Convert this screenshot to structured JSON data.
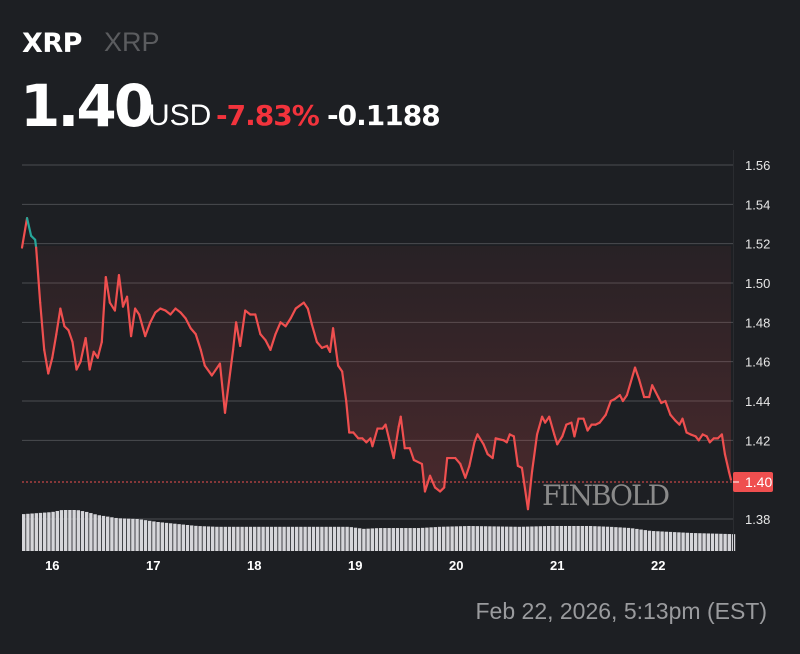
{
  "header": {
    "symbol": "XRP",
    "name": "XRP",
    "price": "1.40",
    "currency": "USD",
    "change_pct": "-7.83%",
    "change_abs": "-0.1188"
  },
  "colors": {
    "down": "#f2333c",
    "line_down": "#ef4f4f",
    "line_up": "#26a69a",
    "background": "#1d1f23"
  },
  "footer": {
    "timestamp": "Feb 22, 2026, 5:13pm (EST)"
  },
  "watermark": "FINBOLD",
  "chart_data": {
    "type": "line",
    "ylim": [
      1.37,
      1.57
    ],
    "y_ticks": [
      "1.56",
      "1.54",
      "1.52",
      "1.50",
      "1.48",
      "1.46",
      "1.44",
      "1.42",
      "1.40",
      "1.38"
    ],
    "x_ticks": [
      "16",
      "17",
      "18",
      "19",
      "20",
      "21",
      "22"
    ],
    "xlim": [
      15.7,
      22.74
    ],
    "current_price_label": "1.40",
    "current_price": 1.4,
    "previous_close": 1.5188,
    "grid": true,
    "series": [
      {
        "x": [
          15.7,
          15.75,
          15.79,
          15.83,
          15.84,
          15.88,
          15.92,
          15.96,
          16.0,
          16.04,
          16.08,
          16.12,
          16.16,
          16.2,
          16.24,
          16.28,
          16.33,
          16.37,
          16.41,
          16.45,
          16.49,
          16.53,
          16.57,
          16.62,
          16.66,
          16.7,
          16.74,
          16.78,
          16.82,
          16.86,
          16.92,
          16.97,
          17.02,
          17.07,
          17.12,
          17.17,
          17.22,
          17.27,
          17.32,
          17.37,
          17.42,
          17.47,
          17.51,
          17.58,
          17.66,
          17.71,
          17.79,
          17.82,
          17.86,
          17.91,
          17.96,
          18.01,
          18.06,
          18.11,
          18.16,
          18.21,
          18.26,
          18.31,
          18.36,
          18.41,
          18.49,
          18.53,
          18.57,
          18.62,
          18.67,
          18.72,
          18.75,
          18.78,
          18.83,
          18.87,
          18.91,
          18.94,
          18.98,
          19.03,
          19.07,
          19.11,
          19.15,
          19.17,
          19.22,
          19.27,
          19.3,
          19.38,
          19.43,
          19.45,
          19.49,
          19.54,
          19.58,
          19.66,
          19.69,
          19.74,
          19.79,
          19.84,
          19.88,
          19.91,
          19.99,
          20.04,
          20.09,
          20.13,
          20.18,
          20.21,
          20.27,
          20.31,
          20.36,
          20.39,
          20.47,
          20.5,
          20.53,
          20.57,
          20.61,
          20.65,
          20.71,
          20.75,
          20.8,
          20.85,
          20.88,
          20.92,
          20.97,
          21.0,
          21.05,
          21.09,
          21.14,
          21.17,
          21.21,
          21.26,
          21.3,
          21.34,
          21.38,
          21.42,
          21.48,
          21.53,
          21.57,
          21.62,
          21.65,
          21.69,
          21.77,
          21.81,
          21.86,
          21.91,
          21.94,
          22.0,
          22.03,
          22.07,
          22.12,
          22.17,
          22.21,
          22.24,
          22.28,
          22.32,
          22.37,
          22.4,
          22.44,
          22.48,
          22.51,
          22.55,
          22.59,
          22.63,
          22.66,
          22.7,
          22.72
        ],
        "y": [
          1.518,
          1.533,
          1.524,
          1.522,
          1.518,
          1.49,
          1.466,
          1.454,
          1.462,
          1.474,
          1.487,
          1.478,
          1.476,
          1.47,
          1.456,
          1.46,
          1.472,
          1.456,
          1.465,
          1.462,
          1.47,
          1.503,
          1.49,
          1.486,
          1.504,
          1.488,
          1.493,
          1.473,
          1.487,
          1.484,
          1.473,
          1.48,
          1.485,
          1.487,
          1.486,
          1.484,
          1.487,
          1.485,
          1.482,
          1.477,
          1.474,
          1.466,
          1.458,
          1.453,
          1.459,
          1.434,
          1.466,
          1.48,
          1.468,
          1.486,
          1.484,
          1.484,
          1.474,
          1.471,
          1.466,
          1.474,
          1.48,
          1.478,
          1.482,
          1.487,
          1.49,
          1.487,
          1.479,
          1.47,
          1.467,
          1.468,
          1.465,
          1.477,
          1.458,
          1.455,
          1.44,
          1.424,
          1.424,
          1.421,
          1.421,
          1.419,
          1.421,
          1.417,
          1.426,
          1.426,
          1.428,
          1.411,
          1.427,
          1.432,
          1.416,
          1.416,
          1.41,
          1.408,
          1.394,
          1.402,
          1.396,
          1.394,
          1.396,
          1.411,
          1.411,
          1.408,
          1.401,
          1.407,
          1.419,
          1.423,
          1.418,
          1.413,
          1.411,
          1.421,
          1.42,
          1.419,
          1.423,
          1.422,
          1.407,
          1.406,
          1.385,
          1.404,
          1.423,
          1.432,
          1.429,
          1.432,
          1.423,
          1.418,
          1.422,
          1.428,
          1.429,
          1.422,
          1.431,
          1.431,
          1.425,
          1.428,
          1.428,
          1.429,
          1.433,
          1.44,
          1.441,
          1.443,
          1.44,
          1.443,
          1.457,
          1.451,
          1.442,
          1.442,
          1.448,
          1.442,
          1.439,
          1.44,
          1.433,
          1.43,
          1.428,
          1.431,
          1.424,
          1.423,
          1.422,
          1.42,
          1.423,
          1.422,
          1.419,
          1.421,
          1.421,
          1.423,
          1.413,
          1.404,
          1.4
        ]
      }
    ],
    "volume_relative": {
      "x": [
        15.7,
        15.98,
        16.08,
        16.23,
        16.33,
        16.43,
        16.63,
        16.83,
        17.02,
        17.22,
        17.42,
        17.62,
        17.92,
        18.42,
        18.92,
        19.07,
        19.22,
        19.62,
        19.82,
        20.11,
        20.61,
        20.91,
        21.31,
        21.51,
        21.71,
        21.91,
        22.31,
        22.74
      ],
      "v": [
        0.9,
        0.95,
        1.0,
        1.0,
        0.95,
        0.88,
        0.8,
        0.78,
        0.71,
        0.66,
        0.61,
        0.59,
        0.59,
        0.59,
        0.59,
        0.54,
        0.56,
        0.56,
        0.59,
        0.61,
        0.59,
        0.61,
        0.61,
        0.59,
        0.56,
        0.49,
        0.44,
        0.41
      ]
    }
  }
}
